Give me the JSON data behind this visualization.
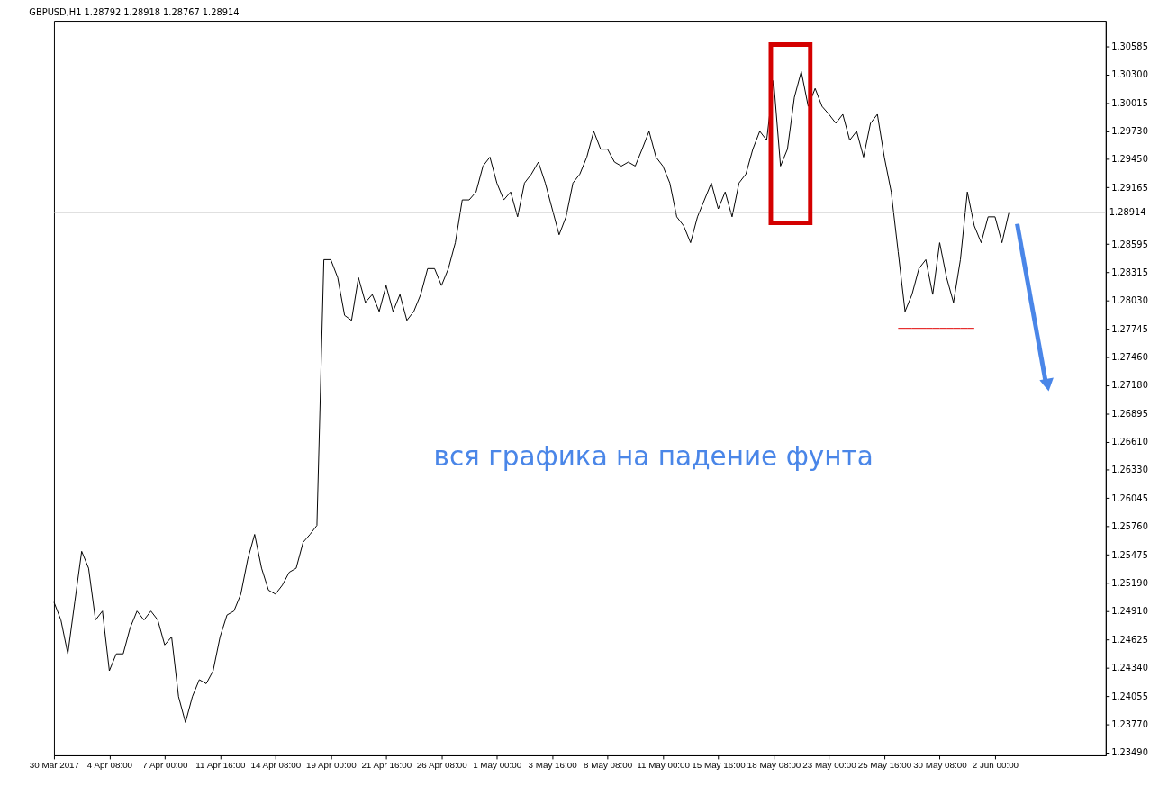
{
  "chart_data": {
    "type": "line",
    "title": "GBPUSD,H1  1.28792 1.28918 1.28767 1.28914",
    "categories": [
      "30 Mar 2017",
      null,
      null,
      null,
      null,
      null,
      null,
      null,
      "4 Apr 08:00",
      null,
      null,
      null,
      null,
      null,
      null,
      null,
      "7 Apr 00:00",
      null,
      null,
      null,
      null,
      null,
      null,
      null,
      "11 Apr 16:00",
      null,
      null,
      null,
      null,
      null,
      null,
      null,
      "14 Apr 08:00",
      null,
      null,
      null,
      null,
      null,
      null,
      null,
      "19 Apr 00:00",
      null,
      null,
      null,
      null,
      null,
      null,
      null,
      "21 Apr 16:00",
      null,
      null,
      null,
      null,
      null,
      null,
      null,
      "26 Apr 08:00",
      null,
      null,
      null,
      null,
      null,
      null,
      null,
      "1 May 00:00",
      null,
      null,
      null,
      null,
      null,
      null,
      null,
      "3 May 16:00",
      null,
      null,
      null,
      null,
      null,
      null,
      null,
      "8 May 08:00",
      null,
      null,
      null,
      null,
      null,
      null,
      null,
      "11 May 00:00",
      null,
      null,
      null,
      null,
      null,
      null,
      null,
      "15 May 16:00",
      null,
      null,
      null,
      null,
      null,
      null,
      null,
      "18 May 08:00",
      null,
      null,
      null,
      null,
      null,
      null,
      null,
      "23 May 00:00",
      null,
      null,
      null,
      null,
      null,
      null,
      null,
      "25 May 16:00",
      null,
      null,
      null,
      null,
      null,
      null,
      null,
      "30 May 08:00",
      null,
      null,
      null,
      null,
      null,
      null,
      null,
      "2 Jun 00:00",
      null,
      null,
      null,
      null,
      null,
      null,
      null,
      null,
      null,
      null,
      null,
      null,
      null,
      null,
      null,
      null
    ],
    "series": [
      {
        "color": "#000000",
        "values": [
          1.25,
          1.2482,
          1.2448,
          1.25,
          1.2551,
          1.2534,
          1.2482,
          1.2491,
          1.2431,
          1.2448,
          1.2448,
          1.2474,
          1.2491,
          1.2482,
          1.2491,
          1.2482,
          1.2457,
          1.2465,
          1.2405,
          1.2379,
          1.2405,
          1.2422,
          1.2418,
          1.2431,
          1.2465,
          1.2487,
          1.2491,
          1.2508,
          1.2543,
          1.2568,
          1.2534,
          1.2512,
          1.2508,
          1.2517,
          1.253,
          1.2534,
          1.256,
          1.2568,
          1.2577,
          1.2844,
          1.2844,
          1.2826,
          1.2788,
          1.2783,
          1.2826,
          1.2801,
          1.2809,
          1.2792,
          1.2818,
          1.2792,
          1.2809,
          1.2783,
          1.2792,
          1.2809,
          1.2835,
          1.2835,
          1.2818,
          1.2835,
          1.2861,
          1.2904,
          1.2904,
          1.2912,
          1.2938,
          1.2947,
          1.2921,
          1.2904,
          1.2912,
          1.2887,
          1.2921,
          1.293,
          1.2942,
          1.2921,
          1.2895,
          1.2869,
          1.2887,
          1.2921,
          1.293,
          1.2947,
          1.2973,
          1.2955,
          1.2955,
          1.2942,
          1.2938,
          1.2942,
          1.2938,
          1.2955,
          1.2973,
          1.2947,
          1.2938,
          1.2921,
          1.2887,
          1.2878,
          1.2861,
          1.2887,
          1.2904,
          1.2921,
          1.2895,
          1.2912,
          1.2887,
          1.2921,
          1.293,
          1.2955,
          1.2973,
          1.2964,
          1.3024,
          1.2938,
          1.2955,
          1.3007,
          1.3033,
          1.2998,
          1.3016,
          1.2998,
          1.299,
          1.2981,
          1.299,
          1.2964,
          1.2973,
          1.2947,
          1.2981,
          1.299,
          1.2947,
          1.2912,
          1.2852,
          1.2792,
          1.2809,
          1.2835,
          1.2844,
          1.2809,
          1.2861,
          1.2826,
          1.2801,
          1.2844,
          1.2912,
          1.2878,
          1.2861,
          1.2887,
          1.2887,
          1.2861,
          1.2891,
          null,
          null,
          null,
          null,
          null,
          null,
          null,
          null,
          null,
          null,
          null,
          null,
          null,
          null
        ]
      },
      {
        "color": "#e00000",
        "values": [
          null,
          null,
          null,
          null,
          null,
          null,
          null,
          null,
          null,
          null,
          null,
          null,
          null,
          null,
          null,
          null,
          null,
          null,
          null,
          null,
          null,
          null,
          null,
          null,
          null,
          null,
          null,
          null,
          null,
          null,
          null,
          null,
          null,
          null,
          null,
          null,
          null,
          null,
          null,
          null,
          null,
          null,
          null,
          null,
          null,
          null,
          null,
          null,
          null,
          null,
          null,
          null,
          null,
          null,
          null,
          null,
          null,
          null,
          null,
          null,
          null,
          null,
          null,
          null,
          null,
          null,
          null,
          null,
          null,
          null,
          null,
          null,
          null,
          null,
          null,
          null,
          null,
          null,
          null,
          null,
          null,
          null,
          null,
          null,
          null,
          null,
          null,
          null,
          null,
          null,
          null,
          null,
          null,
          null,
          null,
          null,
          null,
          null,
          null,
          null,
          null,
          null,
          null,
          null,
          null,
          null,
          null,
          null,
          null,
          null,
          null,
          null,
          null,
          null,
          null,
          null,
          null,
          null,
          null,
          null,
          null,
          null,
          1.2775,
          1.2775,
          1.2775,
          1.2775,
          1.2775,
          1.2775,
          1.2775,
          1.2775,
          1.2775,
          1.2775,
          1.2775,
          1.2775,
          null,
          null,
          null,
          null,
          null,
          null,
          null,
          null,
          null,
          null,
          null,
          null,
          null,
          null,
          null,
          null,
          null,
          null,
          null
        ]
      }
    ],
    "ylim": [
      1.2346,
      1.3084
    ],
    "yticks": [
      {
        "value": 1.2349,
        "label": "1.23490"
      },
      {
        "value": 1.2377,
        "label": "1.23770"
      },
      {
        "value": 1.24055,
        "label": "1.24055"
      },
      {
        "value": 1.2434,
        "label": "1.24340"
      },
      {
        "value": 1.24625,
        "label": "1.24625"
      },
      {
        "value": 1.2491,
        "label": "1.24910"
      },
      {
        "value": 1.2519,
        "label": "1.25190"
      },
      {
        "value": 1.25475,
        "label": "1.25475"
      },
      {
        "value": 1.2576,
        "label": "1.25760"
      },
      {
        "value": 1.26045,
        "label": "1.26045"
      },
      {
        "value": 1.2633,
        "label": "1.26330"
      },
      {
        "value": 1.2661,
        "label": "1.26610"
      },
      {
        "value": 1.26895,
        "label": "1.26895"
      },
      {
        "value": 1.2718,
        "label": "1.27180"
      },
      {
        "value": 1.2746,
        "label": "1.27460"
      },
      {
        "value": 1.27745,
        "label": "1.27745"
      },
      {
        "value": 1.2803,
        "label": "1.28030"
      },
      {
        "value": 1.28315,
        "label": "1.28315"
      },
      {
        "value": 1.28595,
        "label": "1.28595"
      },
      {
        "value": 1.29165,
        "label": "1.29165"
      },
      {
        "value": 1.2945,
        "label": "1.29450"
      },
      {
        "value": 1.2973,
        "label": "1.29730"
      },
      {
        "value": 1.30015,
        "label": "1.30015"
      },
      {
        "value": 1.303,
        "label": "1.30300"
      },
      {
        "value": 1.30585,
        "label": "1.30585"
      }
    ],
    "ref_lines": [
      {
        "axis": "y",
        "value": 1.28914,
        "label": "1.28914",
        "color": "#c0c0c0"
      }
    ],
    "annotations": [
      "вся графика на падение фунта"
    ],
    "marker": "none",
    "line_style": "solid"
  }
}
